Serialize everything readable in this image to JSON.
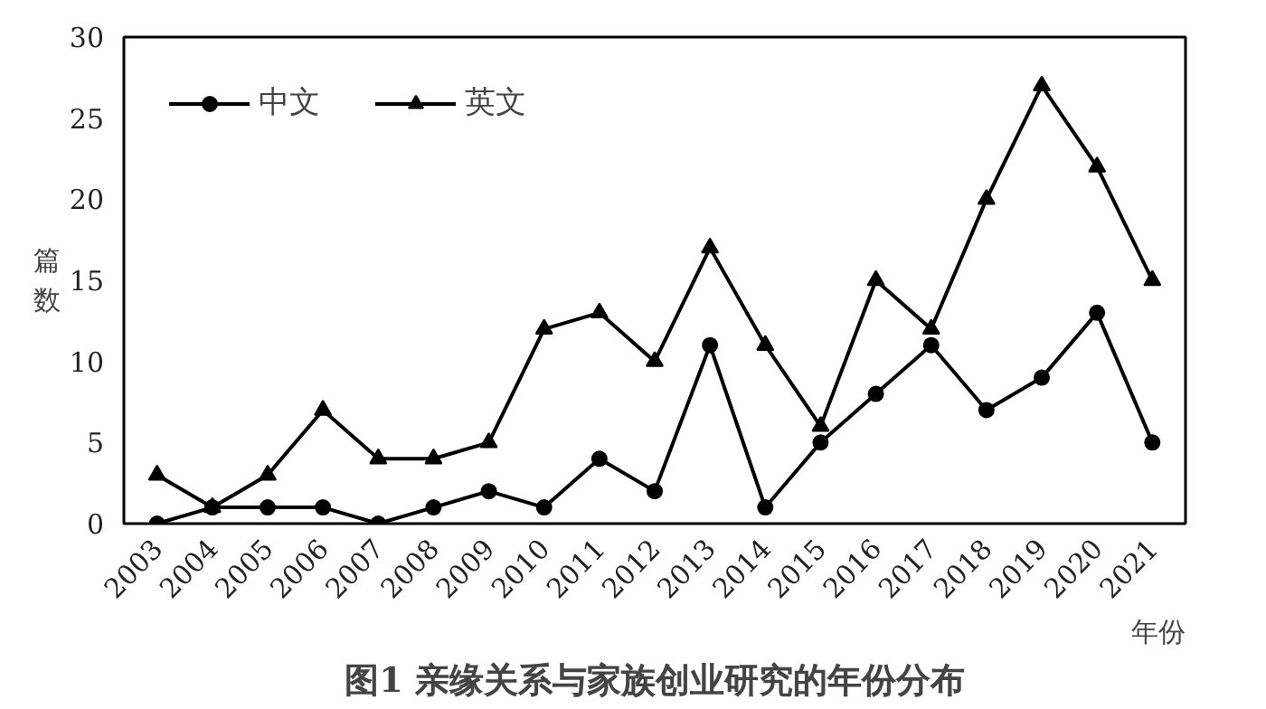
{
  "chart_data": {
    "type": "line",
    "title": "图1 亲缘关系与家族创业研究的年份分布",
    "xlabel": "年份",
    "ylabel": "篇数",
    "categories": [
      "2003",
      "2004",
      "2005",
      "2006",
      "2007",
      "2008",
      "2009",
      "2010",
      "2011",
      "2012",
      "2013",
      "2014",
      "2015",
      "2016",
      "2017",
      "2018",
      "2019",
      "2020",
      "2021"
    ],
    "series": [
      {
        "name": "中文",
        "color": "#000000",
        "marker": "circle",
        "values": [
          0,
          1,
          1,
          1,
          0,
          1,
          2,
          1,
          4,
          2,
          11,
          1,
          5,
          8,
          11,
          7,
          9,
          13,
          5
        ]
      },
      {
        "name": "英文",
        "color": "#000000",
        "marker": "triangle",
        "values": [
          3,
          1,
          3,
          7,
          4,
          4,
          5,
          12,
          13,
          10,
          17,
          11,
          6,
          15,
          12,
          20,
          27,
          22,
          15
        ]
      }
    ],
    "ylim": [
      0,
      30
    ],
    "yticks": [
      0,
      5,
      10,
      15,
      20,
      25,
      30
    ],
    "grid": false,
    "legend": "top left",
    "line_style": "solid"
  }
}
